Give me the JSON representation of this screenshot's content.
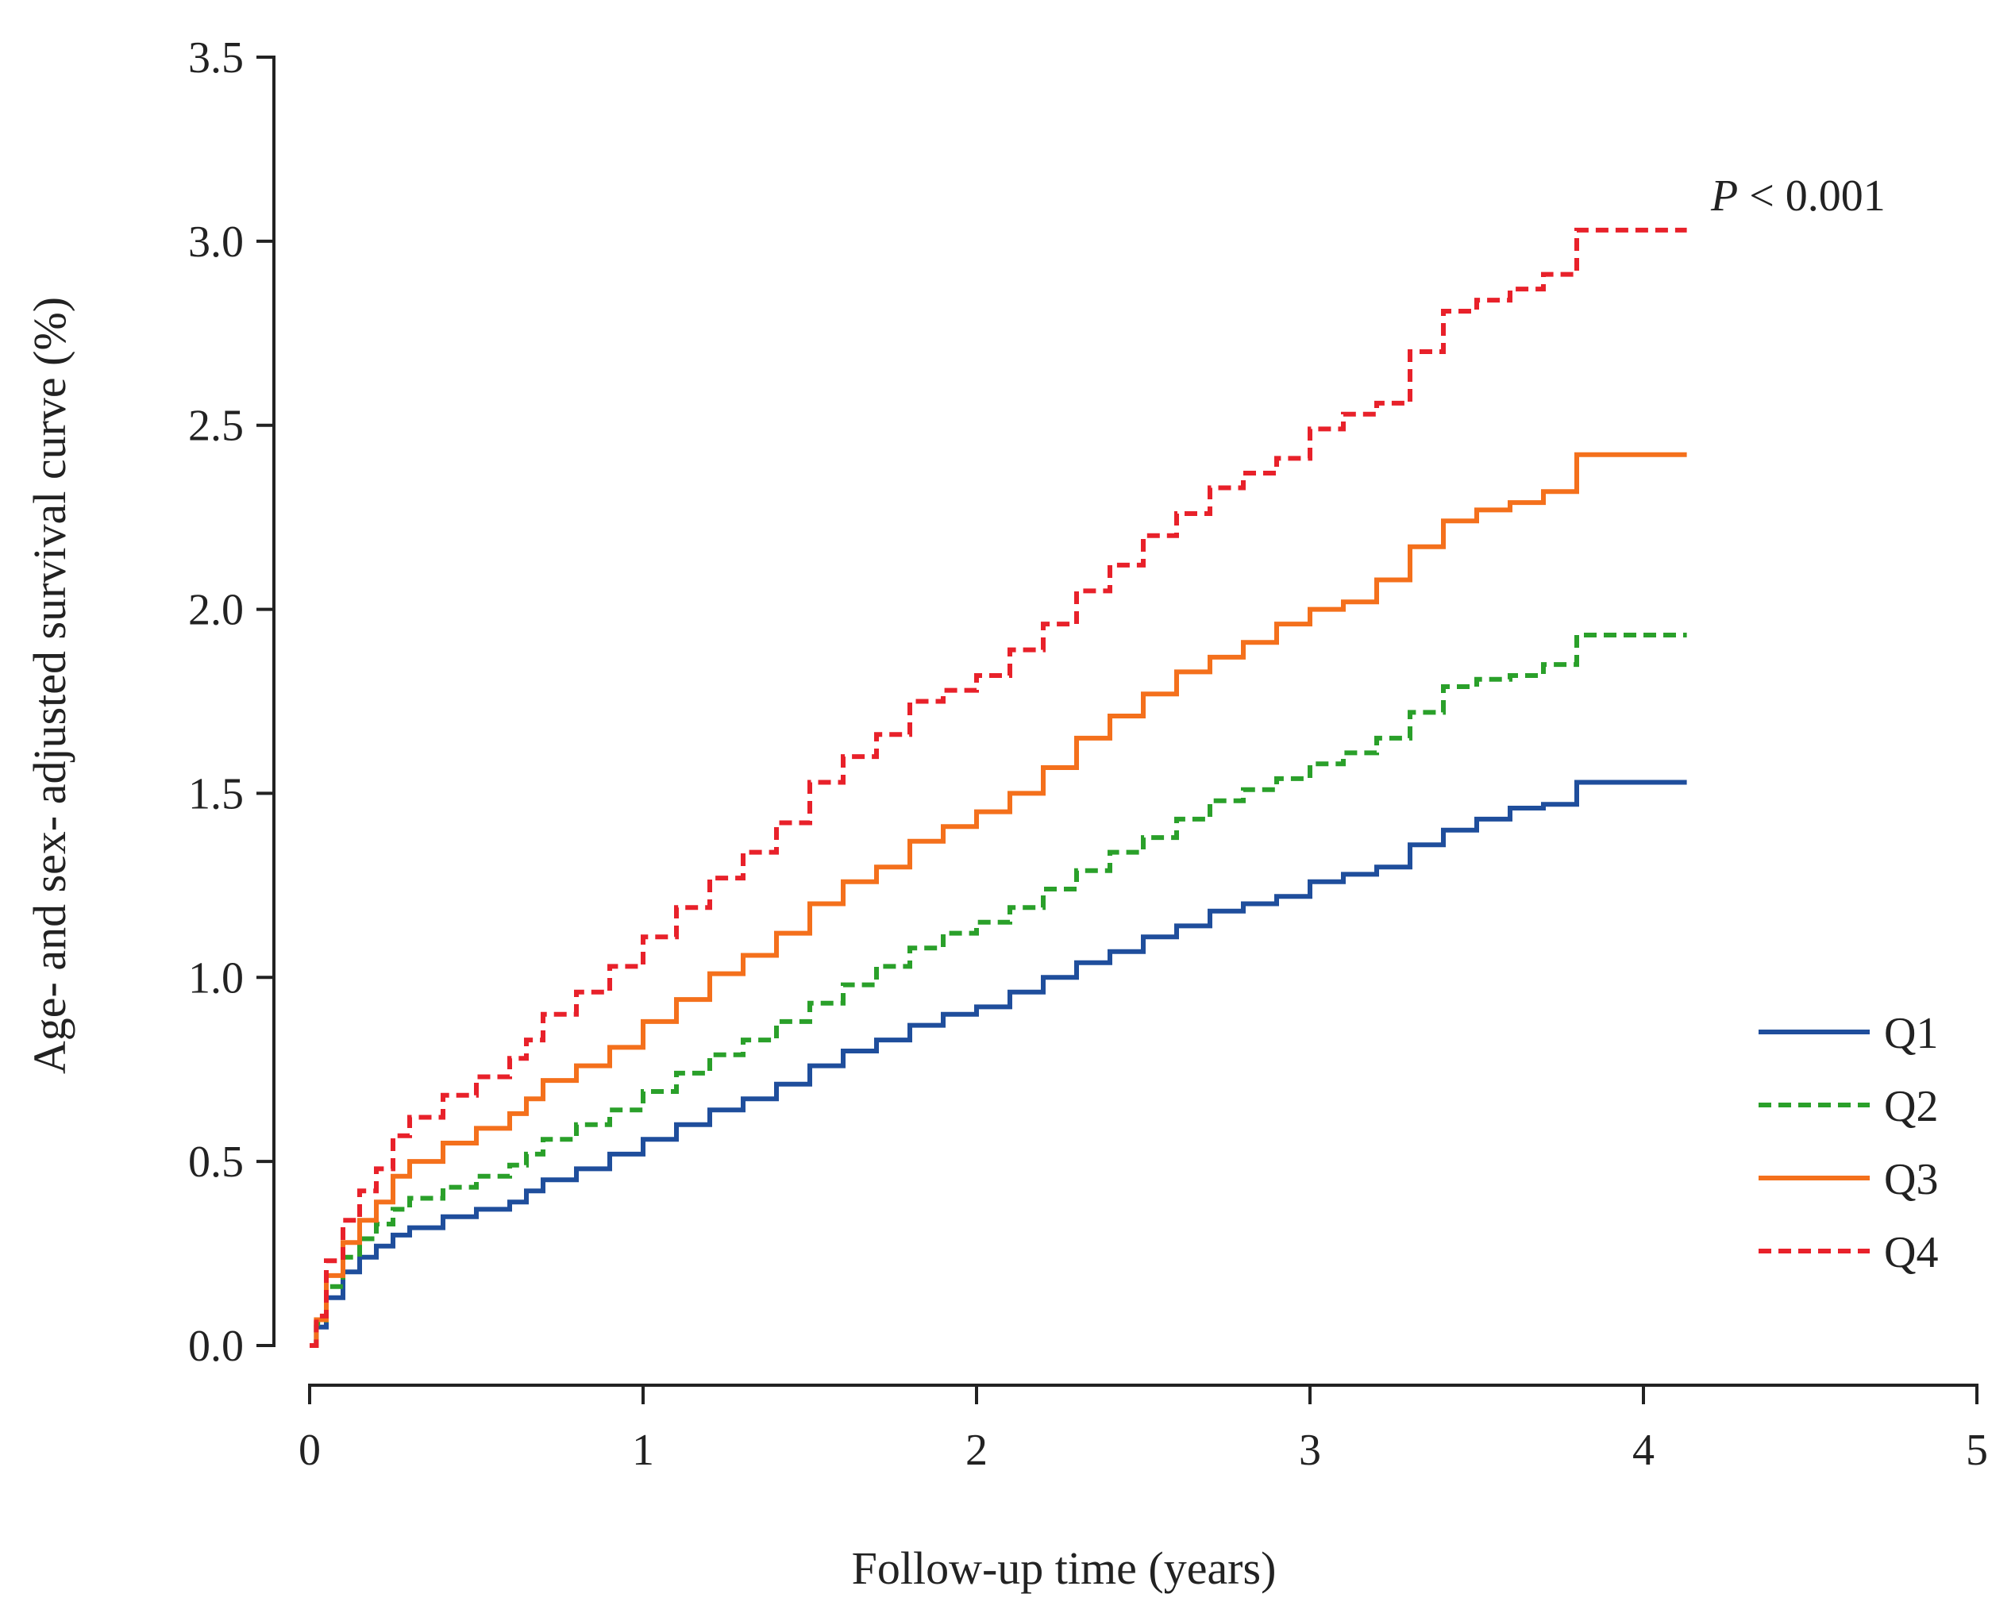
{
  "chart_data": {
    "type": "line",
    "title": "",
    "xlabel": "Follow-up time (years)",
    "ylabel": "Age- and sex- adjusted survival curve (%)",
    "xlim": [
      0,
      5
    ],
    "ylim": [
      0,
      3.5
    ],
    "x_ticks": [
      0,
      1,
      2,
      3,
      4,
      5
    ],
    "x_tick_labels": [
      "0",
      "1",
      "2",
      "3",
      "4",
      "5"
    ],
    "y_ticks": [
      0,
      0.5,
      1,
      1.5,
      2,
      2.5,
      3,
      3.5
    ],
    "y_tick_labels": [
      "0.0",
      "0.5",
      "1.0",
      "1.5",
      "2.0",
      "2.5",
      "3.0",
      "3.5"
    ],
    "grid": false,
    "legend_position": "right",
    "annotation": {
      "italic": "P",
      "rest": " < 0.001"
    },
    "series": [
      {
        "name": "Q1",
        "color": "#1f4e9c",
        "style": "solid",
        "x": [
          0,
          0.02,
          0.05,
          0.1,
          0.15,
          0.2,
          0.25,
          0.3,
          0.4,
          0.5,
          0.6,
          0.65,
          0.7,
          0.8,
          0.9,
          1.0,
          1.1,
          1.2,
          1.3,
          1.4,
          1.5,
          1.6,
          1.7,
          1.8,
          1.9,
          2.0,
          2.1,
          2.2,
          2.3,
          2.4,
          2.5,
          2.6,
          2.7,
          2.8,
          2.9,
          3.0,
          3.1,
          3.2,
          3.3,
          3.4,
          3.5,
          3.6,
          3.7,
          3.8,
          4.13
        ],
        "y": [
          0,
          0.05,
          0.13,
          0.2,
          0.24,
          0.27,
          0.3,
          0.32,
          0.35,
          0.37,
          0.39,
          0.42,
          0.45,
          0.48,
          0.52,
          0.56,
          0.6,
          0.64,
          0.67,
          0.71,
          0.76,
          0.8,
          0.83,
          0.87,
          0.9,
          0.92,
          0.96,
          1.0,
          1.04,
          1.07,
          1.11,
          1.14,
          1.18,
          1.2,
          1.22,
          1.26,
          1.28,
          1.3,
          1.36,
          1.4,
          1.43,
          1.46,
          1.47,
          1.53,
          1.53
        ]
      },
      {
        "name": "Q2",
        "color": "#2aa02a",
        "style": "dashed",
        "x": [
          0,
          0.02,
          0.05,
          0.1,
          0.15,
          0.2,
          0.25,
          0.3,
          0.4,
          0.5,
          0.6,
          0.65,
          0.7,
          0.8,
          0.9,
          1.0,
          1.1,
          1.2,
          1.3,
          1.4,
          1.5,
          1.6,
          1.7,
          1.8,
          1.9,
          2.0,
          2.1,
          2.2,
          2.3,
          2.4,
          2.5,
          2.6,
          2.7,
          2.8,
          2.9,
          3.0,
          3.1,
          3.2,
          3.3,
          3.4,
          3.5,
          3.6,
          3.7,
          3.8,
          4.13
        ],
        "y": [
          0,
          0.06,
          0.16,
          0.24,
          0.29,
          0.33,
          0.37,
          0.4,
          0.43,
          0.46,
          0.49,
          0.52,
          0.56,
          0.6,
          0.64,
          0.69,
          0.74,
          0.79,
          0.83,
          0.88,
          0.93,
          0.98,
          1.03,
          1.08,
          1.12,
          1.15,
          1.19,
          1.24,
          1.29,
          1.34,
          1.38,
          1.43,
          1.48,
          1.51,
          1.54,
          1.58,
          1.61,
          1.65,
          1.72,
          1.79,
          1.81,
          1.82,
          1.85,
          1.93,
          1.93
        ]
      },
      {
        "name": "Q3",
        "color": "#f4701c",
        "style": "solid",
        "x": [
          0,
          0.02,
          0.05,
          0.1,
          0.15,
          0.2,
          0.25,
          0.3,
          0.4,
          0.5,
          0.6,
          0.65,
          0.7,
          0.8,
          0.9,
          1.0,
          1.1,
          1.2,
          1.3,
          1.4,
          1.5,
          1.6,
          1.7,
          1.8,
          1.9,
          2.0,
          2.1,
          2.2,
          2.3,
          2.4,
          2.5,
          2.6,
          2.7,
          2.8,
          2.9,
          3.0,
          3.1,
          3.2,
          3.3,
          3.4,
          3.5,
          3.6,
          3.7,
          3.8,
          4.13
        ],
        "y": [
          0,
          0.07,
          0.19,
          0.28,
          0.34,
          0.39,
          0.46,
          0.5,
          0.55,
          0.59,
          0.63,
          0.67,
          0.72,
          0.76,
          0.81,
          0.88,
          0.94,
          1.01,
          1.06,
          1.12,
          1.2,
          1.26,
          1.3,
          1.37,
          1.41,
          1.45,
          1.5,
          1.57,
          1.65,
          1.71,
          1.77,
          1.83,
          1.87,
          1.91,
          1.96,
          2.0,
          2.02,
          2.08,
          2.17,
          2.24,
          2.27,
          2.29,
          2.32,
          2.42,
          2.42
        ]
      },
      {
        "name": "Q4",
        "color": "#e8212a",
        "style": "dashed",
        "x": [
          0,
          0.02,
          0.05,
          0.1,
          0.15,
          0.2,
          0.25,
          0.3,
          0.4,
          0.5,
          0.6,
          0.65,
          0.7,
          0.8,
          0.9,
          1.0,
          1.1,
          1.2,
          1.3,
          1.4,
          1.5,
          1.6,
          1.7,
          1.8,
          1.9,
          2.0,
          2.1,
          2.2,
          2.3,
          2.4,
          2.5,
          2.6,
          2.7,
          2.8,
          2.9,
          3.0,
          3.1,
          3.2,
          3.3,
          3.4,
          3.5,
          3.6,
          3.7,
          3.8,
          4.13
        ],
        "y": [
          0,
          0.08,
          0.23,
          0.34,
          0.42,
          0.48,
          0.57,
          0.62,
          0.68,
          0.73,
          0.78,
          0.83,
          0.9,
          0.96,
          1.03,
          1.11,
          1.19,
          1.27,
          1.34,
          1.42,
          1.53,
          1.6,
          1.66,
          1.75,
          1.78,
          1.82,
          1.89,
          1.96,
          2.05,
          2.12,
          2.2,
          2.26,
          2.33,
          2.37,
          2.41,
          2.49,
          2.53,
          2.56,
          2.7,
          2.81,
          2.84,
          2.87,
          2.91,
          3.03,
          3.03
        ]
      }
    ]
  }
}
